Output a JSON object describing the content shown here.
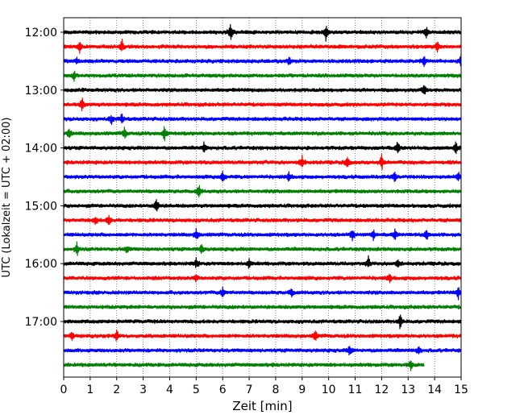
{
  "chart_data": {
    "type": "line",
    "subtype": "helicorder-seismogram",
    "xlabel": "Zeit  [min]",
    "ylabel": "UTC (Lokalzeit = UTC + 02:00)",
    "xlim": [
      0,
      15
    ],
    "x_ticks": [
      0,
      1,
      2,
      3,
      4,
      5,
      6,
      7,
      8,
      9,
      10,
      11,
      12,
      13,
      14,
      15
    ],
    "x_grid": "dotted",
    "y_ticks": [
      "12:00",
      "13:00",
      "14:00",
      "15:00",
      "16:00",
      "17:00"
    ],
    "trace_colors": [
      "#000000",
      "#ff0000",
      "#0000ff",
      "#008000"
    ],
    "traces": [
      {
        "start": "12:00",
        "end_min": 15,
        "events": [
          [
            6.3,
            1.0
          ],
          [
            9.9,
            1.0
          ],
          [
            13.7,
            0.7
          ]
        ]
      },
      {
        "start": "12:15",
        "end_min": 15,
        "events": [
          [
            0.6,
            0.8
          ],
          [
            2.2,
            0.9
          ],
          [
            14.1,
            0.6
          ]
        ]
      },
      {
        "start": "12:30",
        "end_min": 15,
        "events": [
          [
            0.5,
            0.4
          ],
          [
            8.5,
            0.6
          ],
          [
            13.6,
            0.6
          ],
          [
            15.0,
            0.9
          ]
        ]
      },
      {
        "start": "12:45",
        "end_min": 15,
        "events": [
          [
            0.4,
            0.6
          ]
        ]
      },
      {
        "start": "13:00",
        "end_min": 15,
        "events": [
          [
            13.6,
            0.7
          ]
        ]
      },
      {
        "start": "13:15",
        "end_min": 15,
        "events": [
          [
            0.7,
            0.8
          ]
        ]
      },
      {
        "start": "13:30",
        "end_min": 15,
        "events": [
          [
            1.8,
            0.6
          ],
          [
            2.2,
            0.7
          ]
        ]
      },
      {
        "start": "13:45",
        "end_min": 15,
        "events": [
          [
            0.2,
            0.6
          ],
          [
            2.3,
            0.7
          ],
          [
            3.8,
            0.9
          ]
        ]
      },
      {
        "start": "14:00",
        "end_min": 15,
        "events": [
          [
            5.3,
            0.6
          ],
          [
            12.6,
            0.8
          ],
          [
            14.8,
            0.9
          ]
        ]
      },
      {
        "start": "14:15",
        "end_min": 15,
        "events": [
          [
            9.0,
            0.8
          ],
          [
            10.7,
            0.8
          ],
          [
            12.0,
            1.0
          ]
        ]
      },
      {
        "start": "14:30",
        "end_min": 15,
        "events": [
          [
            6.0,
            0.8
          ],
          [
            8.5,
            0.6
          ],
          [
            12.5,
            0.6
          ],
          [
            14.9,
            0.7
          ]
        ]
      },
      {
        "start": "14:45",
        "end_min": 15,
        "events": [
          [
            5.1,
            0.8
          ]
        ]
      },
      {
        "start": "15:00",
        "end_min": 15,
        "events": [
          [
            3.5,
            1.0
          ]
        ]
      },
      {
        "start": "15:15",
        "end_min": 15,
        "events": [
          [
            1.2,
            0.6
          ],
          [
            1.7,
            0.7
          ]
        ]
      },
      {
        "start": "15:30",
        "end_min": 15,
        "events": [
          [
            5.0,
            0.8
          ],
          [
            10.9,
            0.7
          ],
          [
            11.7,
            0.6
          ],
          [
            12.5,
            0.6
          ],
          [
            13.7,
            0.7
          ]
        ]
      },
      {
        "start": "15:45",
        "end_min": 15,
        "events": [
          [
            0.5,
            0.8
          ],
          [
            2.4,
            0.5
          ],
          [
            5.2,
            0.7
          ]
        ]
      },
      {
        "start": "16:00",
        "end_min": 15,
        "events": [
          [
            5.0,
            0.6
          ],
          [
            7.0,
            0.5
          ],
          [
            11.5,
            0.7
          ],
          [
            12.6,
            0.5
          ]
        ]
      },
      {
        "start": "16:15",
        "end_min": 15,
        "events": [
          [
            5.0,
            0.5
          ],
          [
            12.3,
            0.6
          ]
        ]
      },
      {
        "start": "16:30",
        "end_min": 15,
        "events": [
          [
            6.0,
            0.8
          ],
          [
            8.6,
            0.6
          ],
          [
            14.9,
            0.8
          ]
        ]
      },
      {
        "start": "16:45",
        "end_min": 15,
        "events": []
      },
      {
        "start": "17:00",
        "end_min": 15,
        "events": [
          [
            12.7,
            0.9
          ]
        ]
      },
      {
        "start": "17:15",
        "end_min": 15,
        "events": [
          [
            0.3,
            0.5
          ],
          [
            2.0,
            0.7
          ],
          [
            9.5,
            0.7
          ]
        ]
      },
      {
        "start": "17:30",
        "end_min": 15,
        "events": [
          [
            10.8,
            0.7
          ],
          [
            13.4,
            0.6
          ]
        ]
      },
      {
        "start": "17:45",
        "end_min": 13.6,
        "events": [
          [
            13.1,
            0.5
          ]
        ]
      }
    ]
  }
}
